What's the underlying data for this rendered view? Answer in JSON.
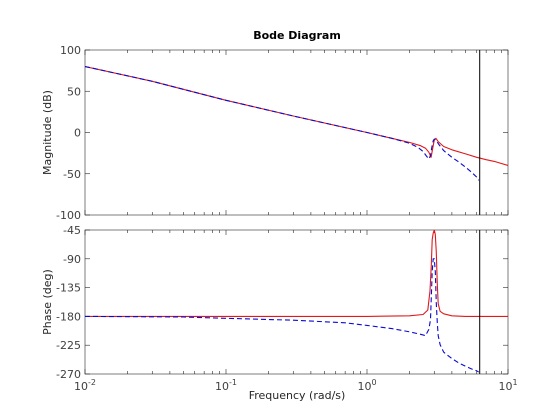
{
  "chart_data": {
    "type": "line",
    "title": "Bode Diagram",
    "xlabel": "Frequency  (rad/s)",
    "x_scale": "log",
    "xlim": [
      0.01,
      10
    ],
    "x_ticks": [
      {
        "value": 0.01,
        "base": "10",
        "exp": "-2"
      },
      {
        "value": 0.1,
        "base": "10",
        "exp": "-1"
      },
      {
        "value": 1,
        "base": "10",
        "exp": "0"
      },
      {
        "value": 10,
        "base": "10",
        "exp": "1"
      }
    ],
    "vertical_marker_x": 6.3,
    "colors": {
      "series_red": "#e0191b",
      "series_blue": "#0a0ad0",
      "axis": "#262626",
      "tick": "#404040",
      "marker": "#000000"
    },
    "magnitude": {
      "ylabel": "Magnitude (dB)",
      "ylim": [
        -100,
        100
      ],
      "y_ticks": [
        "100",
        "50",
        "0",
        "-50",
        "-100"
      ],
      "y_tick_values": [
        100,
        50,
        0,
        -50,
        -100
      ],
      "series": [
        {
          "style": "solid",
          "color": "#e0191b",
          "x": [
            0.01,
            0.03,
            0.1,
            0.3,
            1,
            1.5,
            2,
            2.4,
            2.6,
            2.75,
            2.85,
            2.92,
            3.0,
            3.08,
            3.2,
            3.5,
            4,
            5,
            6,
            7,
            8,
            10
          ],
          "y": [
            80,
            62,
            39,
            20,
            0,
            -7,
            -12,
            -16,
            -19,
            -24,
            -30,
            -20,
            -9,
            -7,
            -11,
            -17,
            -21,
            -26,
            -30,
            -33,
            -35,
            -40
          ]
        },
        {
          "style": "dashed",
          "color": "#0a0ad0",
          "x": [
            0.01,
            0.03,
            0.1,
            0.3,
            1,
            1.5,
            2,
            2.3,
            2.5,
            2.65,
            2.75,
            2.82,
            2.88,
            2.95,
            3.0,
            3.1,
            3.25,
            3.5,
            4,
            4.5,
            5,
            5.5,
            6,
            6.2
          ],
          "y": [
            80,
            62,
            39,
            20,
            0,
            -7,
            -13,
            -18,
            -23,
            -29,
            -32,
            -28,
            -18,
            -10,
            -8,
            -10,
            -15,
            -22,
            -30,
            -36,
            -42,
            -48,
            -54,
            -58
          ]
        }
      ]
    },
    "phase": {
      "ylabel": "Phase (deg)",
      "ylim": [
        -270,
        -45
      ],
      "y_ticks": [
        "-45",
        "-90",
        "-135",
        "-180",
        "-225",
        "-270"
      ],
      "y_tick_values": [
        -45,
        -90,
        -135,
        -180,
        -225,
        -270
      ],
      "series": [
        {
          "style": "solid",
          "color": "#e0191b",
          "x": [
            0.01,
            0.1,
            1,
            2,
            2.5,
            2.7,
            2.8,
            2.86,
            2.9,
            2.95,
            3.0,
            3.05,
            3.1,
            3.15,
            3.2,
            3.3,
            3.5,
            4,
            5,
            10
          ],
          "y": [
            -180,
            -180,
            -180,
            -179,
            -177,
            -170,
            -140,
            -100,
            -60,
            -50,
            -45,
            -52,
            -80,
            -130,
            -160,
            -172,
            -176,
            -179,
            -180,
            -180
          ]
        },
        {
          "style": "dashed",
          "color": "#0a0ad0",
          "x": [
            0.01,
            0.05,
            0.1,
            0.3,
            0.7,
            1,
            1.5,
            2,
            2.4,
            2.6,
            2.75,
            2.82,
            2.86,
            2.9,
            2.95,
            3.0,
            3.05,
            3.1,
            3.15,
            3.2,
            3.3,
            3.5,
            4,
            4.5,
            5,
            5.5,
            6,
            6.2
          ],
          "y": [
            -180,
            -181,
            -183,
            -186,
            -190,
            -194,
            -199,
            -204,
            -208,
            -210,
            -200,
            -185,
            -150,
            -110,
            -90,
            -90,
            -110,
            -160,
            -190,
            -210,
            -224,
            -236,
            -246,
            -253,
            -258,
            -262,
            -265,
            -267
          ]
        }
      ]
    }
  }
}
